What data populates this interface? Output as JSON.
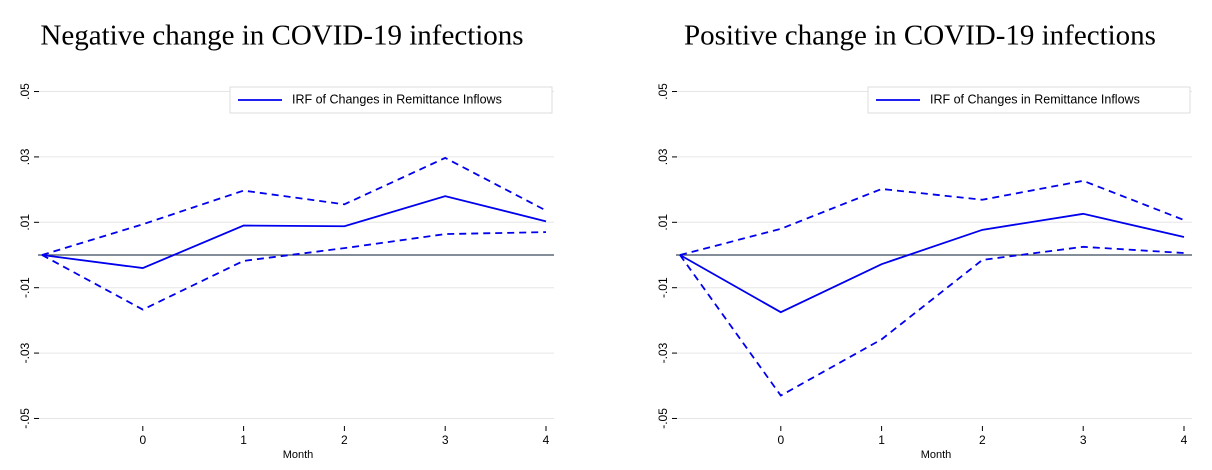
{
  "chart_data": [
    {
      "type": "line",
      "title": "Negative change in COVID-19 infections",
      "x_label": "Month",
      "x": [
        -1,
        0,
        1,
        2,
        3,
        4
      ],
      "xlim": [
        -1,
        4
      ],
      "xticks": [
        0,
        1,
        2,
        3,
        4
      ],
      "ylim": [
        -0.052,
        0.052
      ],
      "yticks": [
        {
          "value": 0.05,
          "label": ".05"
        },
        {
          "value": 0.03,
          "label": ".03"
        },
        {
          "value": 0.01,
          "label": ".01"
        },
        {
          "value": -0.01,
          "label": "-.01"
        },
        {
          "value": -0.03,
          "label": "-.03"
        },
        {
          "value": -0.05,
          "label": "-.05"
        }
      ],
      "grid": true,
      "reference_line": 0,
      "legend_position": "top-right",
      "series": [
        {
          "name": "IRF of Changes in Remittance Inflows",
          "color": "#0000ee",
          "dashed": false,
          "values": [
            0,
            -0.004,
            0.009,
            0.0088,
            0.018,
            0.0103
          ]
        },
        {
          "color": "#0000ee",
          "dashed": true,
          "values": [
            0,
            0.0094,
            0.0197,
            0.0155,
            0.0297,
            0.0136
          ]
        },
        {
          "color": "#0000ee",
          "dashed": true,
          "values": [
            0,
            -0.0167,
            -0.0018,
            0.0021,
            0.0064,
            0.007
          ]
        }
      ]
    },
    {
      "type": "line",
      "title": "Positive change in COVID-19 infections",
      "x_label": "Month",
      "x": [
        -1,
        0,
        1,
        2,
        3,
        4
      ],
      "xlim": [
        -1,
        4
      ],
      "xticks": [
        0,
        1,
        2,
        3,
        4
      ],
      "ylim": [
        -0.052,
        0.052
      ],
      "yticks": [
        {
          "value": 0.05,
          "label": ".05"
        },
        {
          "value": 0.03,
          "label": ".03"
        },
        {
          "value": 0.01,
          "label": ".01"
        },
        {
          "value": -0.01,
          "label": "-.01"
        },
        {
          "value": -0.03,
          "label": "-.03"
        },
        {
          "value": -0.05,
          "label": "-.05"
        }
      ],
      "grid": true,
      "reference_line": 0,
      "legend_position": "top-right",
      "series": [
        {
          "name": "IRF of Changes in Remittance Inflows",
          "color": "#0000ee",
          "dashed": false,
          "values": [
            0,
            -0.0175,
            -0.0028,
            0.0077,
            0.0126,
            0.0055
          ]
        },
        {
          "color": "#0000ee",
          "dashed": true,
          "values": [
            0,
            0.008,
            0.0202,
            0.0169,
            0.0227,
            0.0107
          ]
        },
        {
          "color": "#0000ee",
          "dashed": true,
          "values": [
            0,
            -0.043,
            -0.0258,
            -0.0015,
            0.0025,
            0.0006
          ]
        }
      ]
    }
  ]
}
